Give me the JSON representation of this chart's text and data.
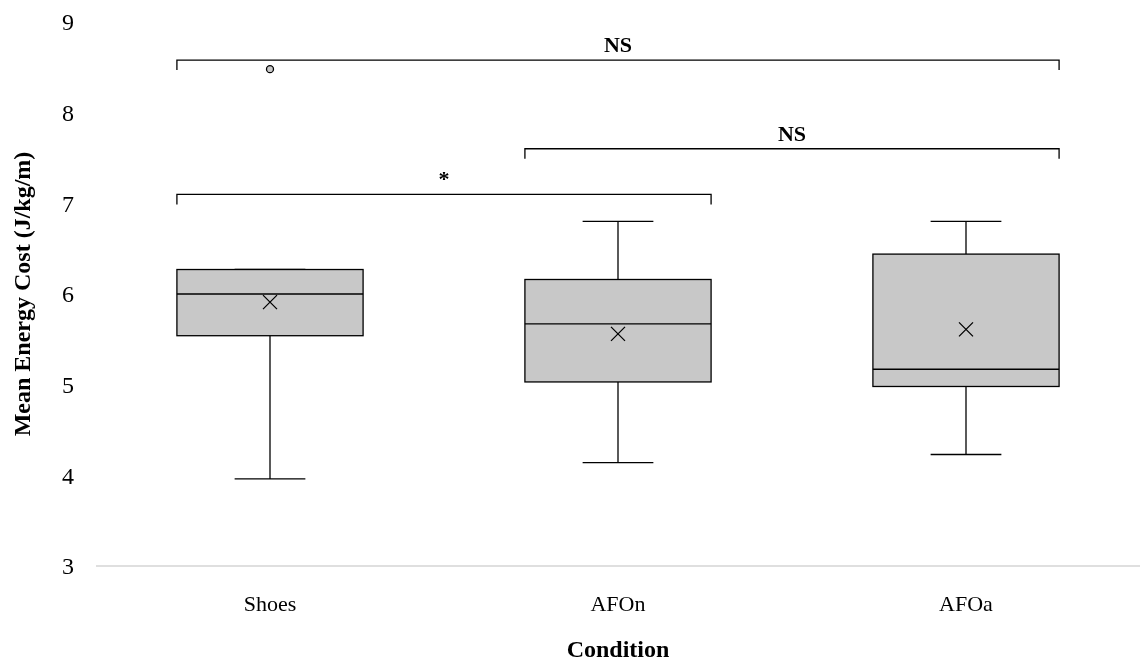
{
  "chart_data": {
    "type": "box",
    "xlabel": "Condition",
    "ylabel": "Mean Energy Cost (J/kg/m)",
    "categories": [
      "Shoes",
      "AFOn",
      "AFOa"
    ],
    "color": "#c8c8c8",
    "boxes": [
      {
        "low": 3.96,
        "q1": 5.54,
        "median": 6.0,
        "q3": 6.27,
        "high": 6.27,
        "mean": 5.91,
        "outliers": [
          8.48
        ]
      },
      {
        "low": 4.14,
        "q1": 5.03,
        "median": 5.67,
        "q3": 6.16,
        "high": 6.8,
        "mean": 5.56
      },
      {
        "low": 4.23,
        "q1": 4.98,
        "median": 5.17,
        "q3": 6.44,
        "high": 6.8,
        "mean": 5.61
      }
    ],
    "ylim": [
      3,
      9
    ],
    "yticks": [
      3,
      4,
      5,
      6,
      7,
      8,
      9
    ],
    "grid": false,
    "annotations": [
      "NS",
      "NS",
      "*"
    ]
  }
}
